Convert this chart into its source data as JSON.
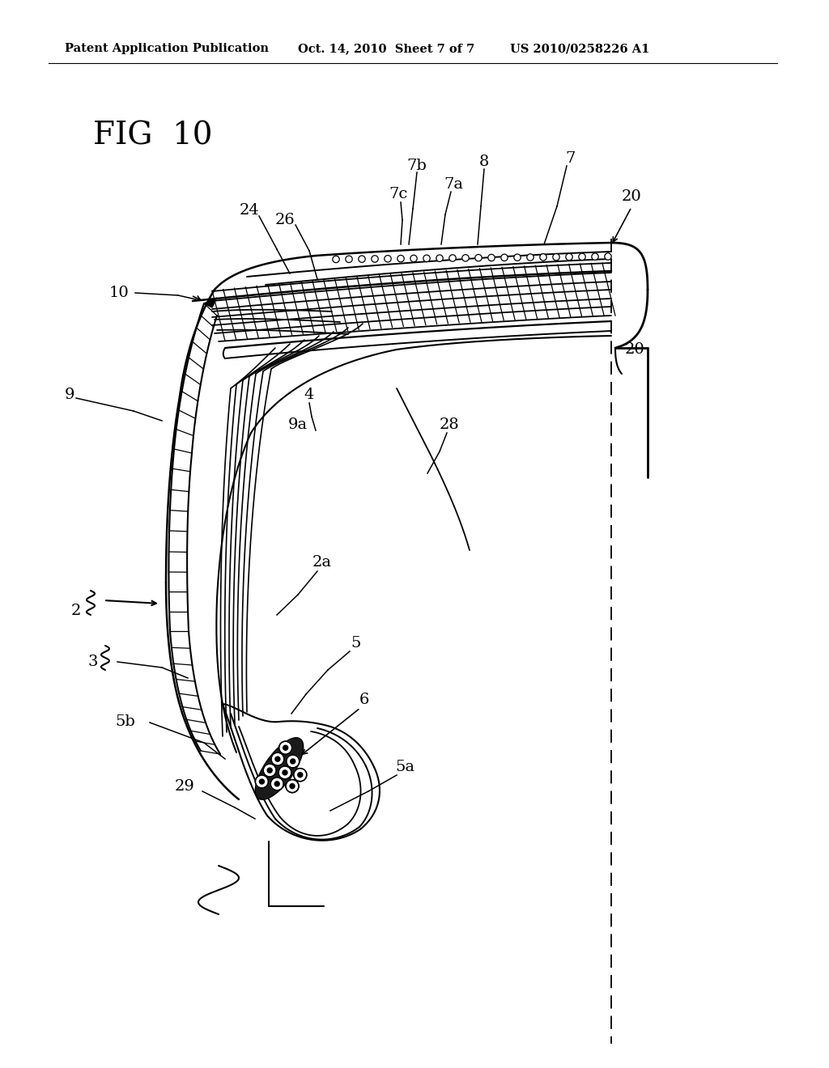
{
  "header_left": "Patent Application Publication",
  "header_mid": "Oct. 14, 2010  Sheet 7 of 7",
  "header_right": "US 2010/0258226 A1",
  "fig_label": "FIG  10",
  "background_color": "#ffffff"
}
